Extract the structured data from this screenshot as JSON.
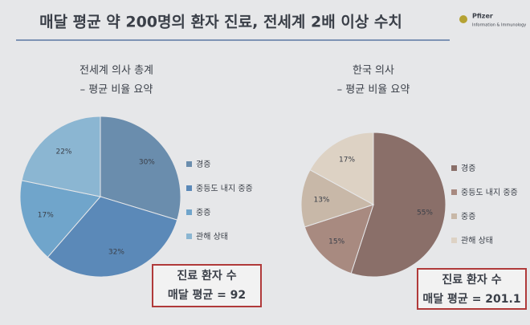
{
  "header": {
    "title": "매달 평균 약 200명의 환자 진료, 전세계 2배 이상 수치",
    "logo": "Pfizer",
    "logo_sub": "Information & Immunology"
  },
  "chart_data": [
    {
      "type": "pie",
      "title": "전세계 의사 총계",
      "subtitle": "– 평균 비율 요약",
      "categories": [
        "경증",
        "중등도 내지 중증",
        "중증",
        "관해 상태"
      ],
      "values": [
        30,
        32,
        17,
        22
      ],
      "value_labels": [
        "30%",
        "32%",
        "17%",
        "22%"
      ],
      "colors": [
        "#6a8dad",
        "#5b89b8",
        "#70a5cb",
        "#8bb6d2"
      ],
      "annotations": [
        "진료 환자 수",
        "매달 평균 = 92"
      ]
    },
    {
      "type": "pie",
      "title": "한국 의사",
      "subtitle": "– 평균 비율 요약",
      "categories": [
        "경증",
        "중등도 내지 중증",
        "중증",
        "관해 상태"
      ],
      "values": [
        55,
        15,
        13,
        17
      ],
      "value_labels": [
        "55%",
        "15%",
        "13%",
        "17%"
      ],
      "colors": [
        "#8a6f69",
        "#a88a80",
        "#c8b8a8",
        "#ddd2c4"
      ],
      "annotations": [
        "진료 환자 수",
        "매달 평균 = 201.1"
      ]
    }
  ]
}
